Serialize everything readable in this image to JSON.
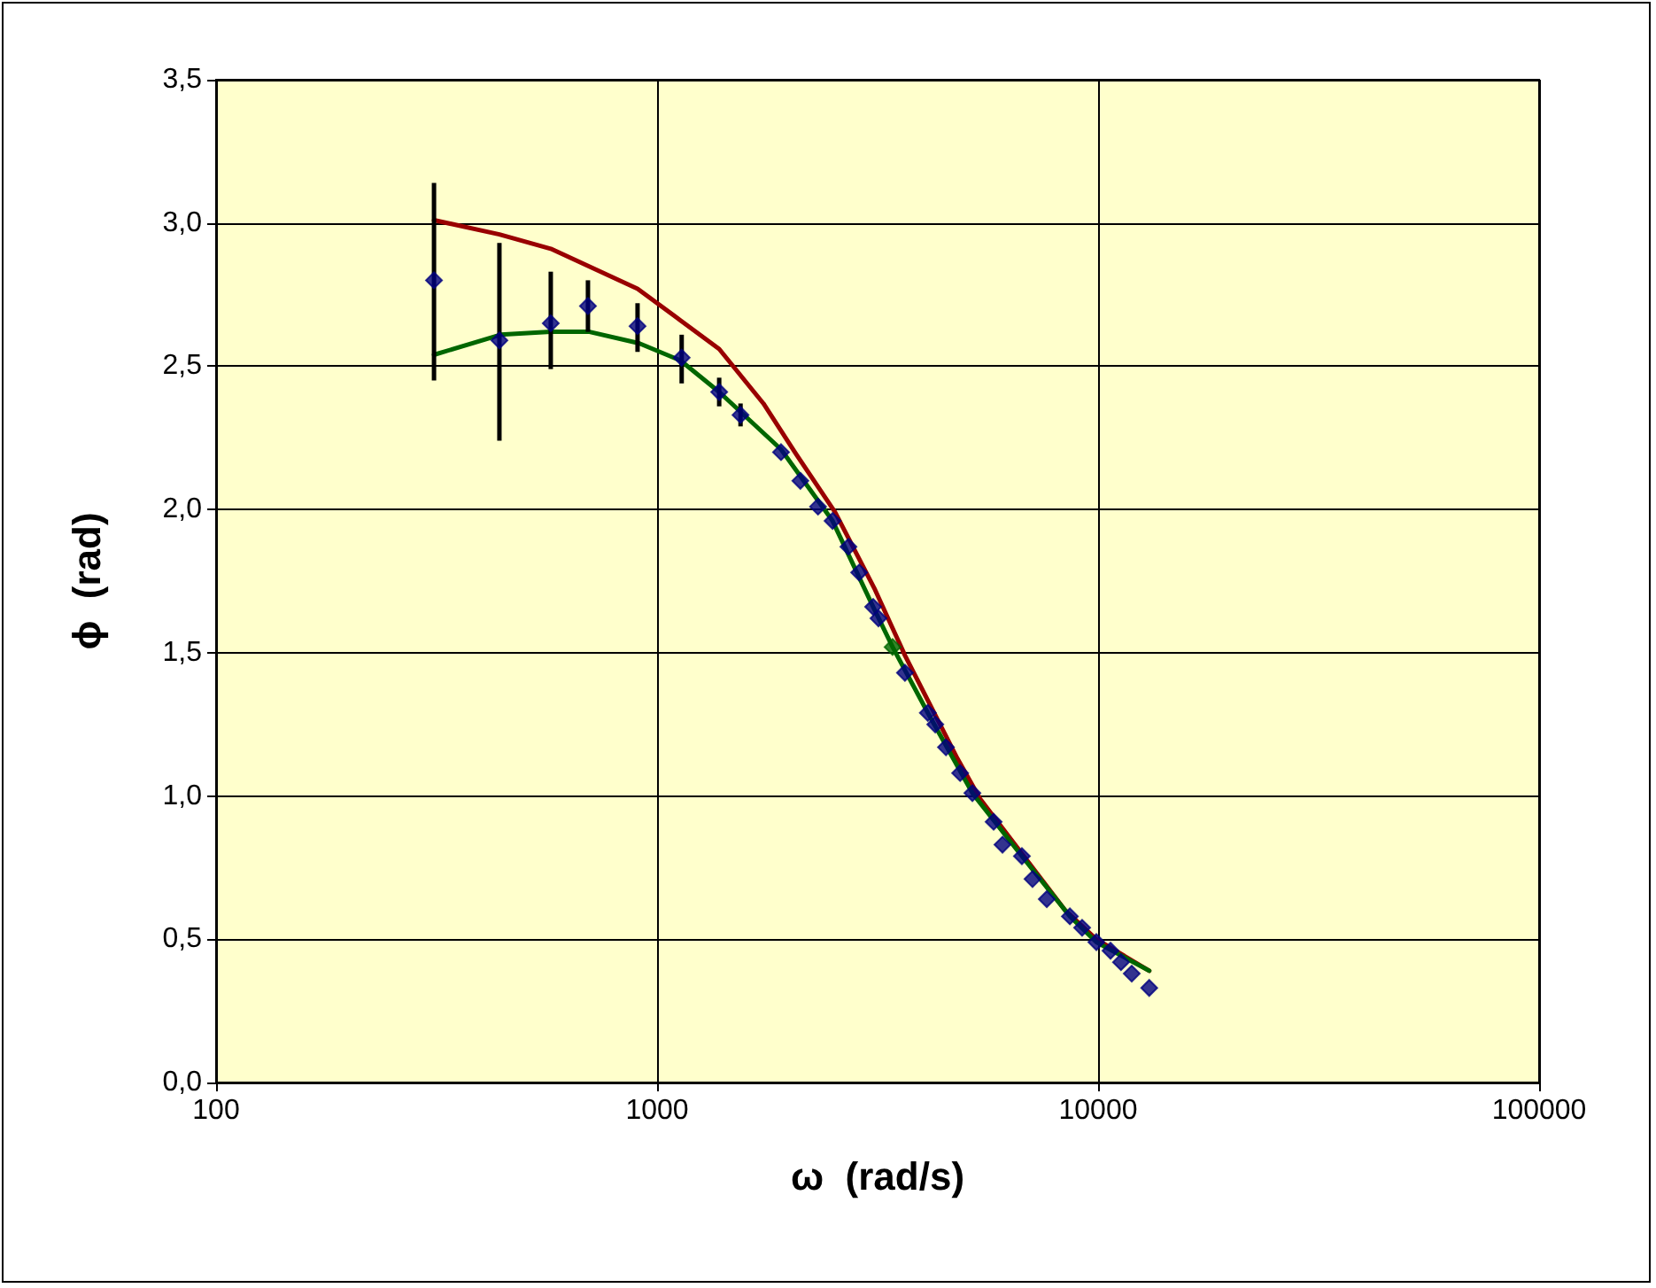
{
  "chart_data": {
    "type": "scatter",
    "xlabel": "ω  (rad/s)",
    "ylabel": "ϕ  (rad)",
    "log": "x",
    "grid": true,
    "xlim": [
      100,
      100000
    ],
    "xticks": [
      100,
      1000,
      10000,
      100000
    ],
    "ylim": [
      0,
      3.5
    ],
    "yticks": [
      {
        "value": 0,
        "label": "0,0"
      },
      {
        "value": 0.5,
        "label": "0,5"
      },
      {
        "value": 1,
        "label": "1,0"
      },
      {
        "value": 1.5,
        "label": "1,5"
      },
      {
        "value": 2,
        "label": "2,0"
      },
      {
        "value": 2.5,
        "label": "2,5"
      },
      {
        "value": 3,
        "label": "3,0"
      },
      {
        "value": 3.5,
        "label": "3,5"
      }
    ],
    "series": [
      {
        "type": "line",
        "color": "#990000",
        "marker": "none",
        "line_style": "solid",
        "x": [
          312,
          439,
          574,
          903,
          1130,
          1383,
          1742,
          2073,
          2534,
          3120,
          3650,
          4800,
          5400,
          8430,
          9910,
          13060
        ],
        "values": [
          3.01,
          2.96,
          2.91,
          2.77,
          2.66,
          2.56,
          2.37,
          2.19,
          1.99,
          1.72,
          1.49,
          1.13,
          0.99,
          0.6,
          0.5,
          0.39
        ]
      },
      {
        "type": "line",
        "color": "#006600",
        "marker": "none",
        "line_style": "solid",
        "x": [
          312,
          442,
          574,
          703,
          910,
          1130,
          1383,
          1910,
          2500,
          3090,
          3420,
          4111,
          5188,
          6718,
          8630,
          9910,
          13060
        ],
        "values": [
          2.54,
          2.61,
          2.62,
          2.62,
          2.58,
          2.52,
          2.41,
          2.21,
          1.96,
          1.66,
          1.52,
          1.29,
          1.01,
          0.79,
          0.58,
          0.49,
          0.39
        ]
      },
      {
        "color": "#000080",
        "marker": "diamond",
        "x": [
          312,
          439,
          574,
          697,
          903,
          1137,
          1383,
          1546,
          1910,
          2113,
          2317,
          2500,
          2716,
          2872,
          3090,
          3177,
          3648,
          4111,
          4274,
          4519,
          4866,
          5188,
          5796,
          6070,
          6718,
          7101,
          7650,
          8630,
          9200,
          9910,
          10670,
          11270,
          11920,
          13060
        ],
        "values": [
          2.8,
          2.59,
          2.65,
          2.71,
          2.64,
          2.53,
          2.41,
          2.33,
          2.2,
          2.1,
          2.01,
          1.96,
          1.87,
          1.78,
          1.66,
          1.62,
          1.43,
          1.29,
          1.25,
          1.17,
          1.08,
          1.01,
          0.91,
          0.83,
          0.79,
          0.71,
          0.64,
          0.58,
          0.54,
          0.49,
          0.46,
          0.42,
          0.38,
          0.33
        ],
        "errors": [
          [
            2.45,
            3.14
          ],
          [
            2.24,
            2.93
          ],
          [
            2.49,
            2.83
          ],
          [
            2.62,
            2.8
          ],
          [
            2.55,
            2.72
          ],
          [
            2.44,
            2.61
          ],
          [
            2.36,
            2.46
          ],
          [
            2.29,
            2.37
          ],
          null,
          null,
          null,
          null,
          null,
          null,
          null,
          null,
          null,
          null,
          null,
          null,
          null,
          null,
          null,
          null,
          null,
          null,
          null,
          null,
          null,
          null,
          null,
          null,
          null,
          null
        ]
      },
      {
        "color": "#006600",
        "marker": "diamond",
        "x": [
          3420
        ],
        "values": [
          1.52
        ]
      }
    ]
  }
}
